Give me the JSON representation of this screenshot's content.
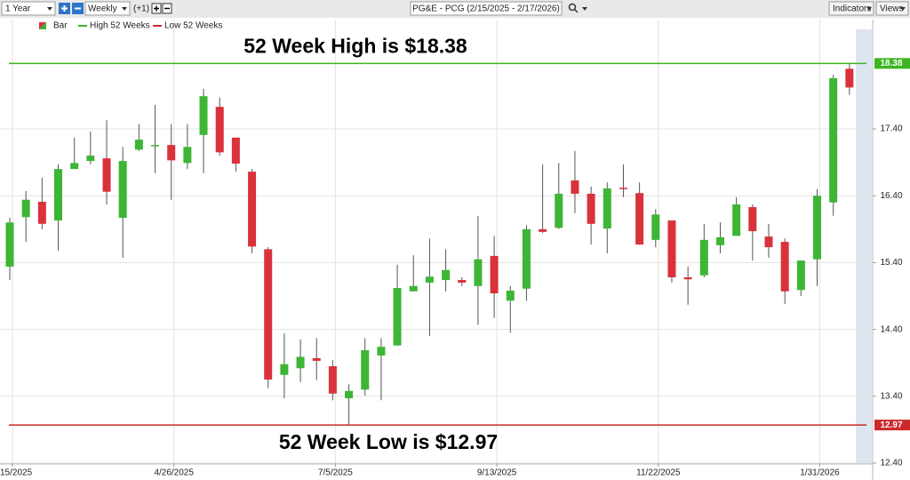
{
  "toolbar": {
    "range": "1 Year",
    "interval": "Weekly",
    "offset": "(+1)",
    "symbol": "PG&E - PCG (2/15/2025 - 2/17/2026)",
    "indicators": "Indicators",
    "views": "Views"
  },
  "chart_data": {
    "type": "candlestick",
    "name": "Bar",
    "up_color": "#3db535",
    "down_color": "#d9323a",
    "categories": [
      "15/2025",
      null,
      null,
      null,
      null,
      null,
      null,
      null,
      null,
      null,
      "4/26/2025",
      null,
      null,
      null,
      null,
      null,
      null,
      null,
      null,
      null,
      "7/5/2025",
      null,
      null,
      null,
      null,
      null,
      null,
      null,
      null,
      null,
      "9/13/2025",
      null,
      null,
      null,
      null,
      null,
      null,
      null,
      null,
      null,
      "11/22/2025",
      null,
      null,
      null,
      null,
      null,
      null,
      null,
      null,
      null,
      "1/31/2026",
      null,
      null
    ],
    "open": [
      15.34,
      16.08,
      16.31,
      16.03,
      16.8,
      16.92,
      16.96,
      16.07,
      17.09,
      17.15,
      17.16,
      16.89,
      17.31,
      17.73,
      17.27,
      16.76,
      15.6,
      13.72,
      13.82,
      13.97,
      13.85,
      13.37,
      13.5,
      14.01,
      14.16,
      14.97,
      15.1,
      15.14,
      15.14,
      15.05,
      15.5,
      14.83,
      15.01,
      15.9,
      15.92,
      16.63,
      16.43,
      15.91,
      16.52,
      16.44,
      15.74,
      16.03,
      15.18,
      15.21,
      15.66,
      15.8,
      16.23,
      15.79,
      15.71,
      14.99,
      15.45,
      16.3,
      18.3
    ],
    "high": [
      16.07,
      16.47,
      16.67,
      16.87,
      17.27,
      17.36,
      17.53,
      17.13,
      17.47,
      17.76,
      17.47,
      17.47,
      18.0,
      17.87,
      17.27,
      16.8,
      15.63,
      14.34,
      14.25,
      14.27,
      13.94,
      13.58,
      14.27,
      14.27,
      15.37,
      15.51,
      15.76,
      15.6,
      15.18,
      16.1,
      15.8,
      15.05,
      15.96,
      16.87,
      16.89,
      17.07,
      16.54,
      16.6,
      16.87,
      16.6,
      16.2,
      16.03,
      15.34,
      15.98,
      16.0,
      16.38,
      16.27,
      15.98,
      15.76,
      15.43,
      16.5,
      18.21,
      18.38
    ],
    "low": [
      15.14,
      15.71,
      15.9,
      15.58,
      16.8,
      16.87,
      16.27,
      15.47,
      17.07,
      16.74,
      16.34,
      16.8,
      16.74,
      17.0,
      16.76,
      15.54,
      13.52,
      13.37,
      13.61,
      13.64,
      13.34,
      12.97,
      13.41,
      13.34,
      14.16,
      14.97,
      14.3,
      14.97,
      15.05,
      14.47,
      14.57,
      14.35,
      14.83,
      15.84,
      15.9,
      16.14,
      15.67,
      15.54,
      16.38,
      15.67,
      15.63,
      15.1,
      14.77,
      15.18,
      15.54,
      15.8,
      15.43,
      15.47,
      14.78,
      14.9,
      15.05,
      16.1,
      17.91
    ],
    "close": [
      16.0,
      16.34,
      15.98,
      16.8,
      16.89,
      17.0,
      16.46,
      16.92,
      17.24,
      17.16,
      16.93,
      17.13,
      17.89,
      17.05,
      16.88,
      15.64,
      13.65,
      13.88,
      13.99,
      13.93,
      13.44,
      13.48,
      14.09,
      14.14,
      15.02,
      15.05,
      15.19,
      15.29,
      15.1,
      15.45,
      14.94,
      14.98,
      15.9,
      15.86,
      16.43,
      16.43,
      15.98,
      16.51,
      16.5,
      15.67,
      16.12,
      15.18,
      15.15,
      15.74,
      15.78,
      16.27,
      15.87,
      15.63,
      14.97,
      15.43,
      16.4,
      18.16,
      18.02
    ],
    "reference_lines": [
      {
        "name": "High 52 Weeks",
        "value": 18.38,
        "color": "#3cb521",
        "label": "52 Week High is $18.38"
      },
      {
        "name": "Low 52 Weeks",
        "value": 12.97,
        "color": "#cc2a2a",
        "label": "52 Week Low is $12.97"
      }
    ],
    "ylim": [
      12.4,
      18.89
    ],
    "yticks": [
      {
        "value": 12.4,
        "label": "12.40"
      },
      {
        "value": 13.4,
        "label": "13.40"
      },
      {
        "value": 14.4,
        "label": "14.40"
      },
      {
        "value": 15.4,
        "label": "15.40"
      },
      {
        "value": 16.4,
        "label": "16.40"
      },
      {
        "value": 17.4,
        "label": "17.40"
      }
    ],
    "grid": true
  }
}
